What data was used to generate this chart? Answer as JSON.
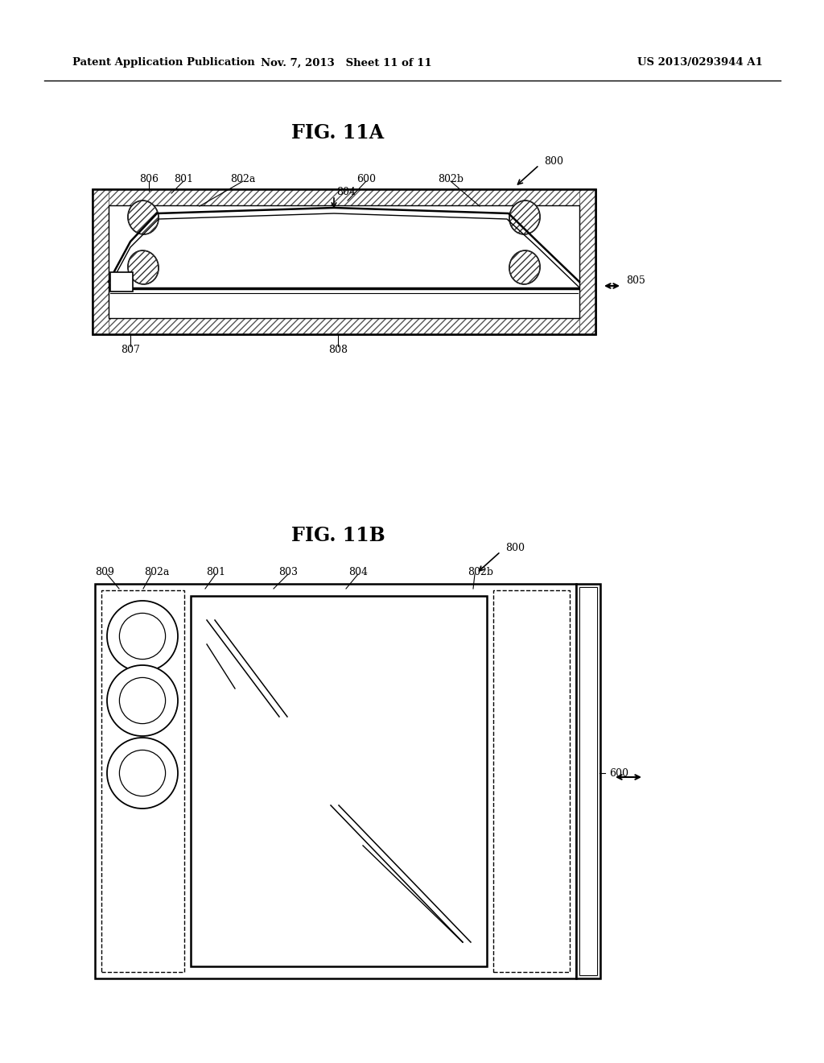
{
  "bg_color": "#ffffff",
  "header_left": "Patent Application Publication",
  "header_mid": "Nov. 7, 2013   Sheet 11 of 11",
  "header_right": "US 2013/0293944 A1",
  "fig11a_title": "FIG. 11A",
  "fig11b_title": "FIG. 11B",
  "line_color": "#000000"
}
